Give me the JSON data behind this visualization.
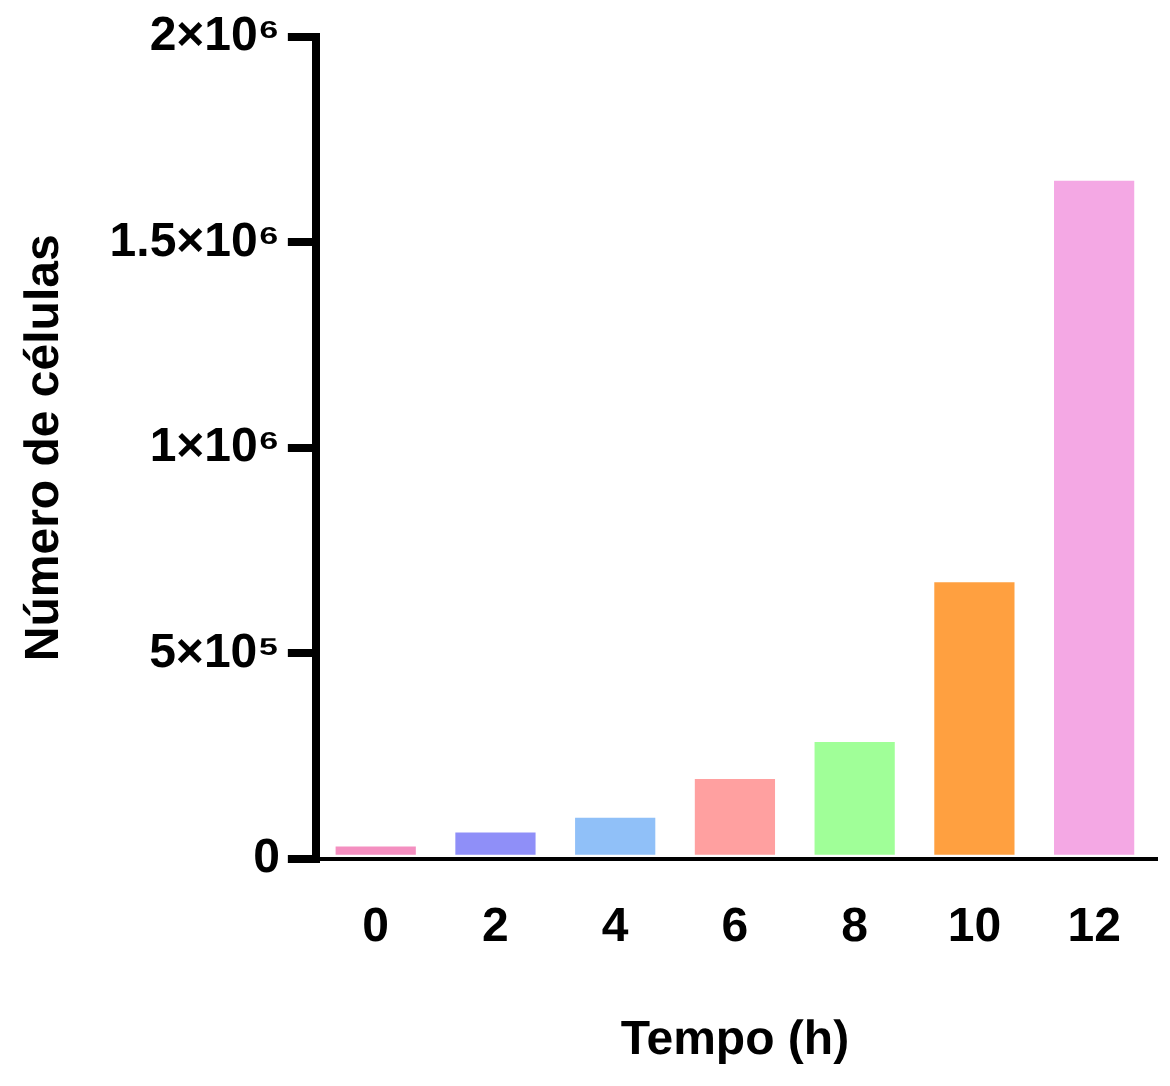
{
  "chart_data": {
    "type": "bar",
    "xlabel": "Tempo (h)",
    "ylabel": "Número de células",
    "categories": [
      "0",
      "2",
      "4",
      "6",
      "8",
      "10",
      "12"
    ],
    "values": [
      30000,
      64000,
      100000,
      194000,
      284000,
      673000,
      1650000
    ],
    "colors": [
      "#f48fc0",
      "#8f8ff8",
      "#90c0f8",
      "#ffa0a0",
      "#a0ff98",
      "#ffa040",
      "#f4a8e4"
    ],
    "ylim": [
      0,
      2000000
    ],
    "yticks": [
      {
        "value": 0,
        "label": "0"
      },
      {
        "value": 500000,
        "label": "5×10⁵"
      },
      {
        "value": 1000000,
        "label": "1×10⁶"
      },
      {
        "value": 1500000,
        "label": "1.5×10⁶"
      },
      {
        "value": 2000000,
        "label": "2×10⁶"
      }
    ],
    "grid": false,
    "legend": false
  }
}
